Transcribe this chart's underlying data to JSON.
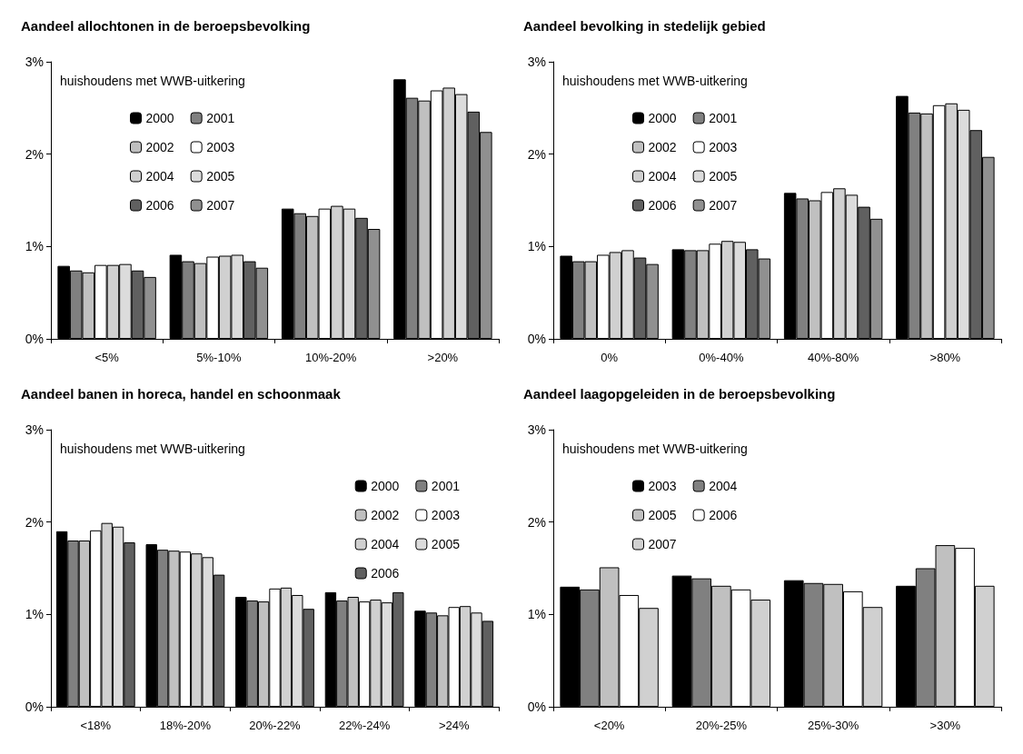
{
  "chart_data": [
    {
      "type": "bar",
      "title": "Aandeel allochtonen in de beroepsbevolking",
      "ylabel": "huishoudens met WWB-uitkering",
      "categories": [
        "<5%",
        "5%-10%",
        "10%-20%",
        ">20%"
      ],
      "ylim": [
        0,
        3
      ],
      "yticks": [
        {
          "value": 0,
          "label": "0%"
        },
        {
          "value": 1,
          "label": "1%"
        },
        {
          "value": 2,
          "label": "2%"
        },
        {
          "value": 3,
          "label": "3%"
        }
      ],
      "legend": "top left",
      "series": [
        {
          "name": "2000",
          "color": "#000000",
          "values": [
            0.79,
            0.91,
            1.41,
            2.81
          ]
        },
        {
          "name": "2001",
          "color": "#808080",
          "values": [
            0.74,
            0.84,
            1.36,
            2.61
          ]
        },
        {
          "name": "2002",
          "color": "#c0c0c0",
          "values": [
            0.72,
            0.82,
            1.33,
            2.58
          ]
        },
        {
          "name": "2003",
          "color": "#ffffff",
          "values": [
            0.8,
            0.89,
            1.41,
            2.69
          ]
        },
        {
          "name": "2004",
          "color": "#d0d0d0",
          "values": [
            0.8,
            0.9,
            1.44,
            2.72
          ]
        },
        {
          "name": "2005",
          "color": "#dcdcdc",
          "values": [
            0.81,
            0.91,
            1.41,
            2.65
          ]
        },
        {
          "name": "2006",
          "color": "#606060",
          "values": [
            0.74,
            0.84,
            1.31,
            2.46
          ]
        },
        {
          "name": "2007",
          "color": "#909090",
          "values": [
            0.67,
            0.77,
            1.19,
            2.24
          ]
        }
      ]
    },
    {
      "type": "bar",
      "title": "Aandeel bevolking in stedelijk gebied",
      "ylabel": "huishoudens met WWB-uitkering",
      "categories": [
        "0%",
        "0%-40%",
        "40%-80%",
        ">80%"
      ],
      "ylim": [
        0,
        3
      ],
      "yticks": [
        {
          "value": 0,
          "label": "0%"
        },
        {
          "value": 1,
          "label": "1%"
        },
        {
          "value": 2,
          "label": "2%"
        },
        {
          "value": 3,
          "label": "3%"
        }
      ],
      "legend": "top left",
      "series": [
        {
          "name": "2000",
          "color": "#000000",
          "values": [
            0.9,
            0.97,
            1.58,
            2.63
          ]
        },
        {
          "name": "2001",
          "color": "#808080",
          "values": [
            0.84,
            0.96,
            1.52,
            2.45
          ]
        },
        {
          "name": "2002",
          "color": "#c0c0c0",
          "values": [
            0.84,
            0.96,
            1.5,
            2.44
          ]
        },
        {
          "name": "2003",
          "color": "#ffffff",
          "values": [
            0.91,
            1.03,
            1.59,
            2.53
          ]
        },
        {
          "name": "2004",
          "color": "#d0d0d0",
          "values": [
            0.94,
            1.06,
            1.63,
            2.55
          ]
        },
        {
          "name": "2005",
          "color": "#dcdcdc",
          "values": [
            0.96,
            1.05,
            1.56,
            2.48
          ]
        },
        {
          "name": "2006",
          "color": "#606060",
          "values": [
            0.88,
            0.97,
            1.43,
            2.26
          ]
        },
        {
          "name": "2007",
          "color": "#909090",
          "values": [
            0.81,
            0.87,
            1.3,
            1.97
          ]
        }
      ]
    },
    {
      "type": "bar",
      "title": "Aandeel banen in horeca, handel en schoonmaak",
      "ylabel": "huishoudens met WWB-uitkering",
      "categories": [
        "<18%",
        "18%-20%",
        "20%-22%",
        "22%-24%",
        ">24%"
      ],
      "ylim": [
        0,
        3
      ],
      "yticks": [
        {
          "value": 0,
          "label": "0%"
        },
        {
          "value": 1,
          "label": "1%"
        },
        {
          "value": 2,
          "label": "2%"
        },
        {
          "value": 3,
          "label": "3%"
        }
      ],
      "legend": "top right",
      "series": [
        {
          "name": "2000",
          "color": "#000000",
          "values": [
            1.9,
            1.76,
            1.19,
            1.24,
            1.04
          ]
        },
        {
          "name": "2001",
          "color": "#808080",
          "values": [
            1.8,
            1.7,
            1.15,
            1.15,
            1.02
          ]
        },
        {
          "name": "2002",
          "color": "#c0c0c0",
          "values": [
            1.8,
            1.69,
            1.14,
            1.19,
            0.99
          ]
        },
        {
          "name": "2003",
          "color": "#ffffff",
          "values": [
            1.91,
            1.68,
            1.28,
            1.14,
            1.08
          ]
        },
        {
          "name": "2004",
          "color": "#d0d0d0",
          "values": [
            1.99,
            1.66,
            1.29,
            1.16,
            1.09
          ]
        },
        {
          "name": "2005",
          "color": "#dcdcdc",
          "values": [
            1.95,
            1.62,
            1.21,
            1.13,
            1.02
          ]
        },
        {
          "name": "2006",
          "color": "#606060",
          "values": [
            1.78,
            1.43,
            1.06,
            1.24,
            0.93
          ]
        }
      ]
    },
    {
      "type": "bar",
      "title": "Aandeel laagopgeleiden in de beroepsbevolking",
      "ylabel": "huishoudens met WWB-uitkering",
      "categories": [
        "<20%",
        "20%-25%",
        "25%-30%",
        ">30%"
      ],
      "ylim": [
        0,
        3
      ],
      "yticks": [
        {
          "value": 0,
          "label": "0%"
        },
        {
          "value": 1,
          "label": "1%"
        },
        {
          "value": 2,
          "label": "2%"
        },
        {
          "value": 3,
          "label": "3%"
        }
      ],
      "legend": "top left",
      "series": [
        {
          "name": "2003",
          "color": "#000000",
          "values": [
            1.3,
            1.42,
            1.37,
            1.31
          ]
        },
        {
          "name": "2004",
          "color": "#808080",
          "values": [
            1.27,
            1.39,
            1.34,
            1.5
          ]
        },
        {
          "name": "2005",
          "color": "#c0c0c0",
          "values": [
            1.51,
            1.31,
            1.33,
            1.75
          ]
        },
        {
          "name": "2006",
          "color": "#ffffff",
          "values": [
            1.21,
            1.27,
            1.25,
            1.72
          ]
        },
        {
          "name": "2007",
          "color": "#d0d0d0",
          "values": [
            1.07,
            1.16,
            1.08,
            1.31
          ]
        }
      ]
    }
  ]
}
